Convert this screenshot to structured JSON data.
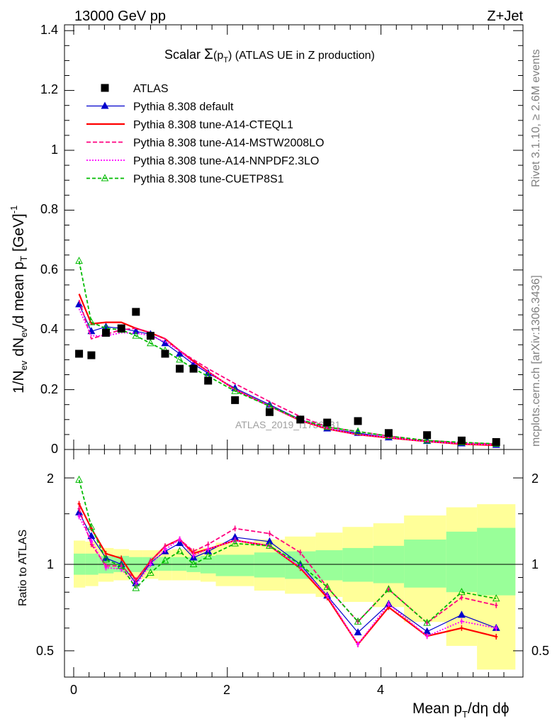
{
  "header": {
    "energy": "13000 GeV pp",
    "process": "Z+Jet"
  },
  "title": {
    "prefix": "Scalar ",
    "sigma": "Σ",
    "paren_open": "(p",
    "sub": "T",
    "paren_close": ")",
    "suffix": " (ATLAS UE in Z production)"
  },
  "side_labels": {
    "rivet": "Rivet 3.1.10, ≥ 2.6M events",
    "mcplots": "mcplots.cern.ch [arXiv:1306.3436]"
  },
  "watermark": "ATLAS_2019_I1736531",
  "axes": {
    "main_ylabel": {
      "a": "1/N",
      "a_sub": "ev",
      "b": " dN",
      "b_sub": "ev",
      "c": "/d mean p",
      "c_sub": "T",
      "d": " [GeV]",
      "d_sup": "-1"
    },
    "ratio_ylabel": "Ratio to ATLAS",
    "xlabel": {
      "a": "Mean p",
      "a_sub": "T",
      "b": "/dη dϕ"
    },
    "main_yticks": [
      "0",
      "0.2",
      "0.4",
      "0.6",
      "0.8",
      "1",
      "1.2",
      "1.4"
    ],
    "ratio_yticks": [
      "0.5",
      "1",
      "2"
    ],
    "xticks": [
      "0",
      "2",
      "4"
    ]
  },
  "colors": {
    "data": "#000000",
    "default": "#0000cc",
    "cteql1": "#ff0000",
    "mstw": "#ff0080",
    "nnpdf": "#ff00ff",
    "cuetp8s1": "#00bb00",
    "band_inner": "#99ff99",
    "band_outer": "#ffff99"
  },
  "chart_data": {
    "type": "scatter",
    "xlim": [
      -0.1,
      5.8
    ],
    "main_ylim": [
      0,
      1.42
    ],
    "ratio_ylim": [
      0.4,
      2.3
    ],
    "ratio_scale": "log",
    "grid": false,
    "legend_position": "top-left",
    "x": [
      0.07,
      0.23,
      0.42,
      0.62,
      0.81,
      1.0,
      1.19,
      1.38,
      1.56,
      1.75,
      2.1,
      2.55,
      2.95,
      3.3,
      3.7,
      4.1,
      4.6,
      5.05,
      5.5
    ],
    "bin_edges": [
      0,
      0.15,
      0.32,
      0.52,
      0.72,
      0.9,
      1.1,
      1.28,
      1.47,
      1.65,
      1.85,
      2.35,
      2.75,
      3.15,
      3.5,
      3.9,
      4.3,
      4.85,
      5.25,
      5.75
    ],
    "data": {
      "name": "ATLAS",
      "values": [
        0.32,
        0.315,
        0.39,
        0.405,
        0.46,
        0.38,
        0.32,
        0.27,
        0.27,
        0.23,
        0.165,
        0.125,
        0.1,
        0.09,
        0.095,
        0.055,
        0.048,
        0.03,
        0.025
      ],
      "band_inner": [
        [
          0.92,
          1.09
        ],
        [
          0.92,
          1.09
        ],
        [
          0.93,
          1.07
        ],
        [
          0.94,
          1.07
        ],
        [
          0.94,
          1.06
        ],
        [
          0.95,
          1.06
        ],
        [
          0.95,
          1.06
        ],
        [
          0.95,
          1.06
        ],
        [
          0.94,
          1.06
        ],
        [
          0.93,
          1.07
        ],
        [
          0.91,
          1.08
        ],
        [
          0.9,
          1.1
        ],
        [
          0.89,
          1.11
        ],
        [
          0.88,
          1.12
        ],
        [
          0.87,
          1.14
        ],
        [
          0.86,
          1.16
        ],
        [
          0.83,
          1.22
        ],
        [
          0.8,
          1.3
        ],
        [
          0.78,
          1.34
        ]
      ],
      "band_outer": [
        [
          0.83,
          1.21
        ],
        [
          0.84,
          1.2
        ],
        [
          0.87,
          1.14
        ],
        [
          0.88,
          1.13
        ],
        [
          0.89,
          1.12
        ],
        [
          0.89,
          1.12
        ],
        [
          0.88,
          1.12
        ],
        [
          0.88,
          1.13
        ],
        [
          0.88,
          1.13
        ],
        [
          0.87,
          1.14
        ],
        [
          0.84,
          1.19
        ],
        [
          0.81,
          1.22
        ],
        [
          0.79,
          1.25
        ],
        [
          0.77,
          1.29
        ],
        [
          0.74,
          1.35
        ],
        [
          0.71,
          1.39
        ],
        [
          0.63,
          1.48
        ],
        [
          0.52,
          1.58
        ],
        [
          0.43,
          1.62
        ]
      ]
    },
    "series": [
      {
        "name": "Pythia 8.308 default",
        "color_key": "default",
        "dash": "",
        "marker": "triangle-filled",
        "values": [
          0.485,
          0.395,
          0.41,
          0.405,
          0.395,
          0.385,
          0.355,
          0.32,
          0.285,
          0.255,
          0.205,
          0.15,
          0.1,
          0.07,
          0.055,
          0.04,
          0.028,
          0.02,
          0.015
        ]
      },
      {
        "name": "Pythia 8.308 tune-A14-CTEQL1",
        "color_key": "cteql1",
        "dash": "",
        "marker": "none",
        "values": [
          0.52,
          0.42,
          0.425,
          0.425,
          0.405,
          0.39,
          0.37,
          0.33,
          0.295,
          0.26,
          0.2,
          0.145,
          0.097,
          0.069,
          0.05,
          0.039,
          0.027,
          0.018,
          0.014
        ]
      },
      {
        "name": "Pythia 8.308 tune-A14-MSTW2008LO",
        "color_key": "mstw",
        "dash": "6,3",
        "marker": "none",
        "values": [
          0.5,
          0.37,
          0.385,
          0.4,
          0.405,
          0.39,
          0.37,
          0.33,
          0.3,
          0.27,
          0.22,
          0.16,
          0.11,
          0.075,
          0.06,
          0.045,
          0.03,
          0.023,
          0.018
        ]
      },
      {
        "name": "Pythia 8.308 tune-A14-NNPDF2.3LO",
        "color_key": "nnpdf",
        "dash": "2,2",
        "marker": "none",
        "values": [
          0.47,
          0.38,
          0.38,
          0.39,
          0.39,
          0.38,
          0.36,
          0.33,
          0.29,
          0.26,
          0.2,
          0.145,
          0.098,
          0.07,
          0.05,
          0.04,
          0.027,
          0.019,
          0.015
        ]
      },
      {
        "name": "Pythia 8.308 tune-CUETP8S1",
        "color_key": "cuetp8s1",
        "dash": "5,3",
        "marker": "triangle-open",
        "values": [
          0.63,
          0.425,
          0.405,
          0.4,
          0.38,
          0.355,
          0.33,
          0.3,
          0.27,
          0.245,
          0.195,
          0.145,
          0.1,
          0.075,
          0.06,
          0.045,
          0.03,
          0.024,
          0.019
        ]
      }
    ]
  }
}
